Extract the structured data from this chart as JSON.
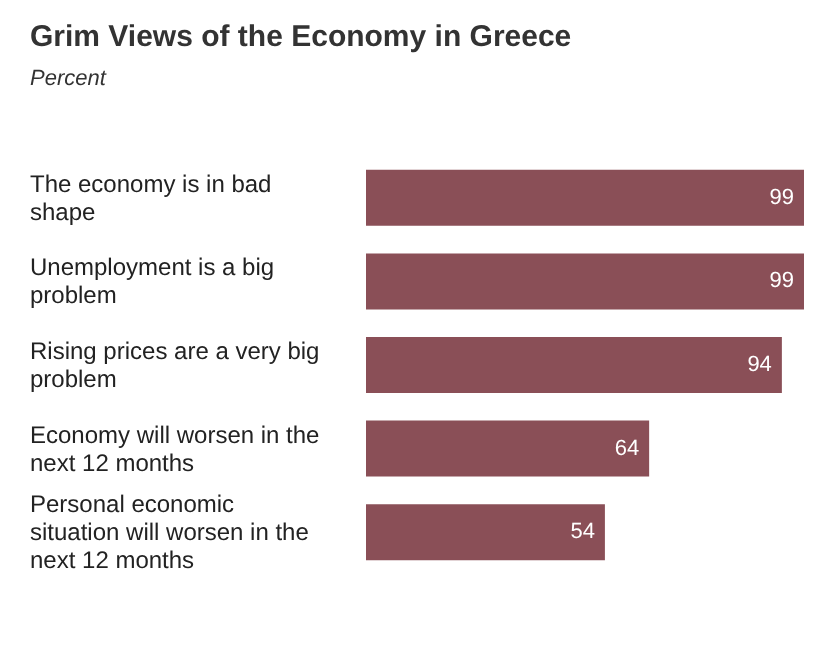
{
  "chart_data": {
    "type": "bar",
    "orientation": "horizontal",
    "title": "Grim Views of the Economy in Greece",
    "subtitle": "Percent",
    "categories": [
      "The economy is in bad shape",
      "Unemployment is a big problem",
      "Rising prices are a very big problem",
      "Economy will worsen in the next 12 months",
      "Personal economic situation will worsen in the next 12 months"
    ],
    "values": [
      99,
      99,
      94,
      64,
      54
    ],
    "color": "#8a4f57",
    "data_labels": true
  }
}
